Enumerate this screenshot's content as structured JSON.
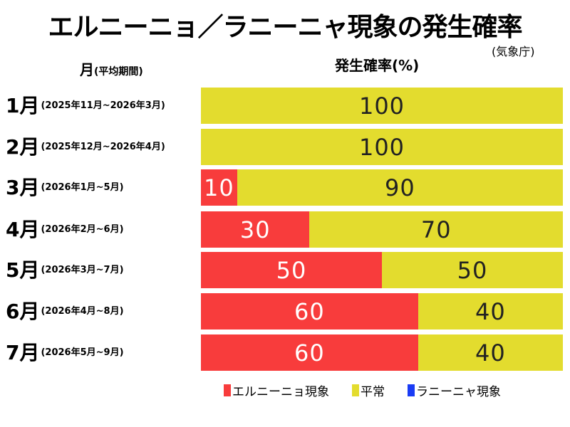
{
  "title": "エルニーニョ／ラニーニャ現象の発生確率",
  "source": "(気象庁)",
  "ylabel_main": "月",
  "ylabel_sub": "(平均期間)",
  "xlabel": "発生確率(%)",
  "colors": {
    "el_nino": "#f83c3c",
    "normal": "#e3dc2e",
    "la_nina": "#1a3cf5"
  },
  "chart_data": {
    "type": "bar",
    "orientation": "horizontal-stacked",
    "title": "エルニーニョ／ラニーニャ現象の発生確率",
    "xlabel": "発生確率(%)",
    "ylabel": "月(平均期間)",
    "xlim": [
      0,
      100
    ],
    "categories": [
      {
        "month": "1月",
        "period": "(2025年11月~2026年3月)"
      },
      {
        "month": "2月",
        "period": "(2025年12月~2026年4月)"
      },
      {
        "month": "3月",
        "period": "(2026年1月~5月)"
      },
      {
        "month": "4月",
        "period": "(2026年2月~6月)"
      },
      {
        "month": "5月",
        "period": "(2026年3月~7月)"
      },
      {
        "month": "6月",
        "period": "(2026年4月~8月)"
      },
      {
        "month": "7月",
        "period": "(2026年5月~9月)"
      }
    ],
    "series": [
      {
        "name": "エルニーニョ現象",
        "values": [
          0,
          0,
          10,
          30,
          50,
          60,
          60
        ]
      },
      {
        "name": "平常",
        "values": [
          100,
          100,
          90,
          70,
          50,
          40,
          40
        ]
      },
      {
        "name": "ラニーニャ現象",
        "values": [
          0,
          0,
          0,
          0,
          0,
          0,
          0
        ]
      }
    ],
    "legend": "bottom",
    "grid": false
  }
}
